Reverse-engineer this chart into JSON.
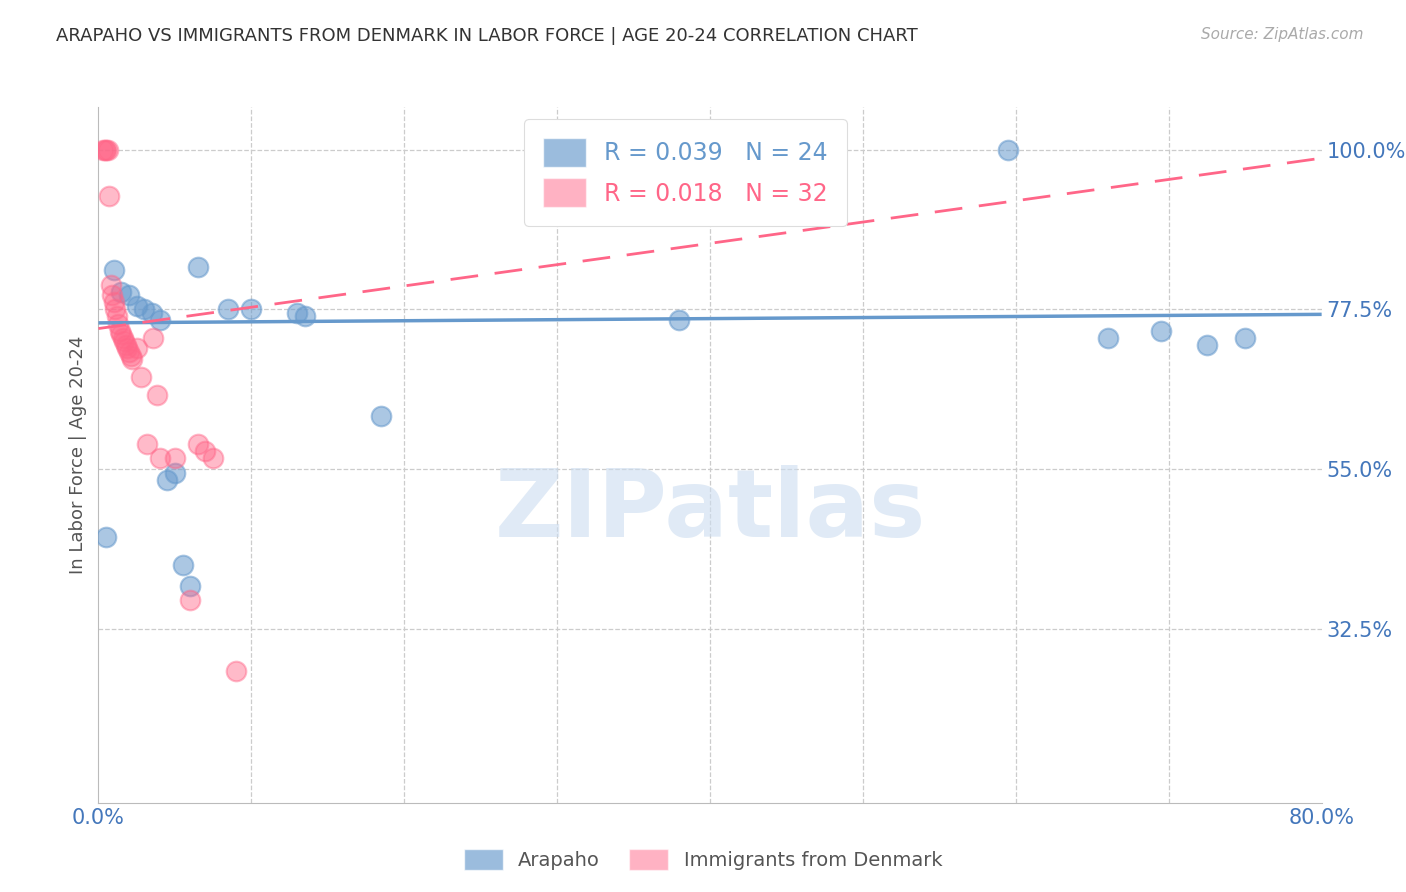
{
  "title": "ARAPAHO VS IMMIGRANTS FROM DENMARK IN LABOR FORCE | AGE 20-24 CORRELATION CHART",
  "source": "Source: ZipAtlas.com",
  "ylabel": "In Labor Force | Age 20-24",
  "xlim": [
    0.0,
    0.8
  ],
  "ylim": [
    0.08,
    1.06
  ],
  "yticks": [
    0.325,
    0.55,
    0.775,
    1.0
  ],
  "ytick_labels": [
    "32.5%",
    "55.0%",
    "77.5%",
    "100.0%"
  ],
  "xticks": [
    0.0,
    0.1,
    0.2,
    0.3,
    0.4,
    0.5,
    0.6,
    0.7,
    0.8
  ],
  "xtick_labels": [
    "0.0%",
    "",
    "",
    "",
    "",
    "",
    "",
    "",
    "80.0%"
  ],
  "blue_R": 0.039,
  "blue_N": 24,
  "pink_R": 0.018,
  "pink_N": 32,
  "blue_color": "#6699CC",
  "pink_color": "#FF6688",
  "axis_color": "#4477BB",
  "watermark": "ZIPatlas",
  "blue_scatter_x": [
    0.005,
    0.01,
    0.015,
    0.02,
    0.025,
    0.03,
    0.035,
    0.04,
    0.045,
    0.05,
    0.055,
    0.06,
    0.065,
    0.085,
    0.1,
    0.13,
    0.135,
    0.185,
    0.38,
    0.595,
    0.66,
    0.695,
    0.725,
    0.75
  ],
  "blue_scatter_y": [
    0.455,
    0.83,
    0.8,
    0.795,
    0.78,
    0.775,
    0.77,
    0.76,
    0.535,
    0.545,
    0.415,
    0.385,
    0.835,
    0.775,
    0.775,
    0.77,
    0.765,
    0.625,
    0.76,
    1.0,
    0.735,
    0.745,
    0.725,
    0.735
  ],
  "pink_scatter_x": [
    0.003,
    0.004,
    0.005,
    0.006,
    0.007,
    0.008,
    0.009,
    0.01,
    0.011,
    0.012,
    0.013,
    0.014,
    0.015,
    0.016,
    0.017,
    0.018,
    0.019,
    0.02,
    0.021,
    0.022,
    0.025,
    0.028,
    0.032,
    0.036,
    0.038,
    0.04,
    0.05,
    0.06,
    0.065,
    0.07,
    0.075,
    0.09
  ],
  "pink_scatter_y": [
    1.0,
    1.0,
    1.0,
    1.0,
    0.935,
    0.81,
    0.795,
    0.785,
    0.775,
    0.765,
    0.755,
    0.745,
    0.74,
    0.735,
    0.73,
    0.725,
    0.72,
    0.715,
    0.71,
    0.705,
    0.72,
    0.68,
    0.585,
    0.735,
    0.655,
    0.565,
    0.565,
    0.365,
    0.585,
    0.575,
    0.565,
    0.265
  ],
  "blue_trend_x": [
    0.0,
    0.8
  ],
  "blue_trend_y": [
    0.756,
    0.768
  ],
  "pink_trend_x": [
    0.0,
    0.8
  ],
  "pink_trend_y": [
    0.748,
    0.988
  ],
  "background_color": "#FFFFFF",
  "grid_color": "#CCCCCC"
}
